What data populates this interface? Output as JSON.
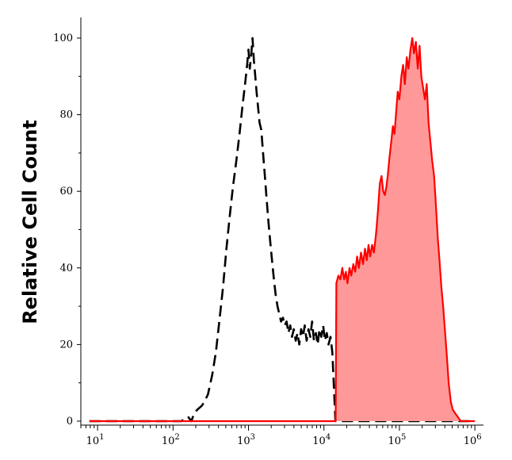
{
  "chart_data": {
    "type": "area",
    "title": "",
    "xlabel": "",
    "ylabel": "Relative Cell Count",
    "x_scale": "log",
    "xlim": [
      6,
      1300000
    ],
    "ylim": [
      0,
      100
    ],
    "x_ticks": [
      {
        "base": "10",
        "exp": "1",
        "value": 10
      },
      {
        "base": "10",
        "exp": "2",
        "value": 100
      },
      {
        "base": "10",
        "exp": "3",
        "value": 1000
      },
      {
        "base": "10",
        "exp": "4",
        "value": 10000
      },
      {
        "base": "10",
        "exp": "5",
        "value": 100000
      },
      {
        "base": "10",
        "exp": "6",
        "value": 1000000
      }
    ],
    "y_ticks": [
      0,
      20,
      40,
      60,
      80,
      100
    ],
    "grid": false,
    "legend": "none",
    "series": [
      {
        "style": "dashed",
        "color": "#000000",
        "points": [
          [
            7.8,
            0
          ],
          [
            130,
            0
          ],
          [
            145,
            1
          ],
          [
            160,
            1
          ],
          [
            175,
            0
          ],
          [
            190,
            2
          ],
          [
            210,
            3
          ],
          [
            240,
            4
          ],
          [
            260,
            5
          ],
          [
            290,
            7
          ],
          [
            330,
            12
          ],
          [
            370,
            18
          ],
          [
            410,
            26
          ],
          [
            460,
            35
          ],
          [
            510,
            45
          ],
          [
            560,
            53
          ],
          [
            620,
            61
          ],
          [
            690,
            68
          ],
          [
            760,
            75
          ],
          [
            830,
            82
          ],
          [
            900,
            88
          ],
          [
            960,
            93
          ],
          [
            1000,
            97
          ],
          [
            1040,
            92
          ],
          [
            1090,
            96
          ],
          [
            1130,
            100
          ],
          [
            1180,
            94
          ],
          [
            1230,
            90
          ],
          [
            1280,
            86
          ],
          [
            1340,
            82
          ],
          [
            1400,
            78
          ],
          [
            1480,
            76
          ],
          [
            1560,
            70
          ],
          [
            1650,
            64
          ],
          [
            1740,
            58
          ],
          [
            1840,
            52
          ],
          [
            1940,
            47
          ],
          [
            2050,
            42
          ],
          [
            2170,
            37
          ],
          [
            2290,
            33
          ],
          [
            2420,
            30
          ],
          [
            2560,
            28
          ],
          [
            2700,
            26
          ],
          [
            2860,
            27
          ],
          [
            3020,
            25
          ],
          [
            3200,
            26
          ],
          [
            3380,
            23
          ],
          [
            3570,
            25
          ],
          [
            3770,
            22
          ],
          [
            3990,
            24
          ],
          [
            4220,
            21
          ],
          [
            4460,
            23
          ],
          [
            4710,
            20
          ],
          [
            4980,
            24
          ],
          [
            5270,
            22
          ],
          [
            5570,
            25
          ],
          [
            5890,
            21
          ],
          [
            6230,
            24
          ],
          [
            6590,
            22
          ],
          [
            6970,
            26
          ],
          [
            7370,
            21
          ],
          [
            7800,
            23
          ],
          [
            8250,
            20
          ],
          [
            8720,
            24
          ],
          [
            9220,
            22
          ],
          [
            9750,
            25
          ],
          [
            10300,
            21
          ],
          [
            10900,
            23
          ],
          [
            11500,
            20
          ],
          [
            12200,
            22
          ],
          [
            12900,
            18
          ],
          [
            13600,
            8
          ],
          [
            14200,
            0
          ],
          [
            1000000,
            0
          ]
        ]
      },
      {
        "style": "filled",
        "color": "#ff0000",
        "fill": "#ff9999",
        "points": [
          [
            7.8,
            0
          ],
          [
            14300,
            0
          ],
          [
            14600,
            36
          ],
          [
            15500,
            38
          ],
          [
            16500,
            37
          ],
          [
            17500,
            40
          ],
          [
            18500,
            37
          ],
          [
            19500,
            39
          ],
          [
            20500,
            36
          ],
          [
            21800,
            40
          ],
          [
            23000,
            38
          ],
          [
            24500,
            41
          ],
          [
            26000,
            39
          ],
          [
            27500,
            43
          ],
          [
            29000,
            40
          ],
          [
            31000,
            44
          ],
          [
            33000,
            41
          ],
          [
            35000,
            45
          ],
          [
            37000,
            42
          ],
          [
            39000,
            46
          ],
          [
            41000,
            43
          ],
          [
            43500,
            46
          ],
          [
            46000,
            44
          ],
          [
            49000,
            49
          ],
          [
            52000,
            55
          ],
          [
            55000,
            62
          ],
          [
            58000,
            64
          ],
          [
            61000,
            60
          ],
          [
            64000,
            59
          ],
          [
            67000,
            61
          ],
          [
            70000,
            64
          ],
          [
            74000,
            69
          ],
          [
            78000,
            73
          ],
          [
            82000,
            77
          ],
          [
            86000,
            75
          ],
          [
            90000,
            80
          ],
          [
            95000,
            86
          ],
          [
            100000,
            84
          ],
          [
            106000,
            90
          ],
          [
            112000,
            93
          ],
          [
            118000,
            88
          ],
          [
            125000,
            95
          ],
          [
            132000,
            92
          ],
          [
            140000,
            97
          ],
          [
            148000,
            100
          ],
          [
            156000,
            96
          ],
          [
            165000,
            99
          ],
          [
            175000,
            92
          ],
          [
            185000,
            98
          ],
          [
            195000,
            90
          ],
          [
            206000,
            87
          ],
          [
            218000,
            84
          ],
          [
            230000,
            88
          ],
          [
            243000,
            78
          ],
          [
            257000,
            73
          ],
          [
            272000,
            68
          ],
          [
            288000,
            64
          ],
          [
            305000,
            56
          ],
          [
            322000,
            48
          ],
          [
            340000,
            42
          ],
          [
            360000,
            35
          ],
          [
            380000,
            30
          ],
          [
            400000,
            24
          ],
          [
            425000,
            17
          ],
          [
            450000,
            10
          ],
          [
            480000,
            5
          ],
          [
            510000,
            3
          ],
          [
            550000,
            2
          ],
          [
            600000,
            1
          ],
          [
            650000,
            0
          ],
          [
            700000,
            0
          ],
          [
            1000000,
            0
          ]
        ]
      }
    ]
  }
}
